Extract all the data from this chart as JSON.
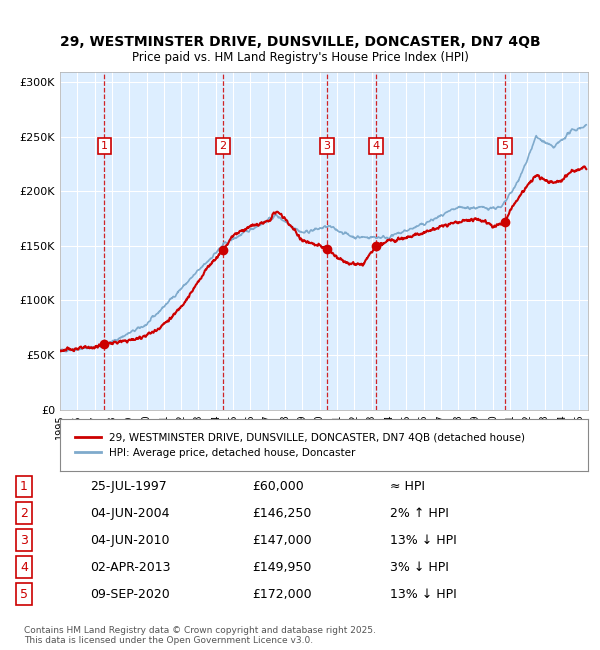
{
  "title_line1": "29, WESTMINSTER DRIVE, DUNSVILLE, DONCASTER, DN7 4QB",
  "title_line2": "Price paid vs. HM Land Registry's House Price Index (HPI)",
  "legend_label_red": "29, WESTMINSTER DRIVE, DUNSVILLE, DONCASTER, DN7 4QB (detached house)",
  "legend_label_blue": "HPI: Average price, detached house, Doncaster",
  "footer": "Contains HM Land Registry data © Crown copyright and database right 2025.\nThis data is licensed under the Open Government Licence v3.0.",
  "transactions": [
    {
      "num": 1,
      "date": "25-JUL-1997",
      "price": 60000,
      "rel": "≈ HPI"
    },
    {
      "num": 2,
      "date": "04-JUN-2004",
      "price": 146250,
      "rel": "2% ↑ HPI"
    },
    {
      "num": 3,
      "date": "04-JUN-2010",
      "price": 147000,
      "rel": "13% ↓ HPI"
    },
    {
      "num": 4,
      "date": "02-APR-2013",
      "price": 149950,
      "rel": "3% ↓ HPI"
    },
    {
      "num": 5,
      "date": "09-SEP-2020",
      "price": 172000,
      "rel": "13% ↓ HPI"
    }
  ],
  "transaction_x": [
    1997.57,
    2004.42,
    2010.42,
    2013.25,
    2020.69
  ],
  "transaction_y": [
    60000,
    146250,
    147000,
    149950,
    172000
  ],
  "ylim": [
    0,
    310000
  ],
  "xlim_start": 1995.0,
  "xlim_end": 2025.5,
  "yticks": [
    0,
    50000,
    100000,
    150000,
    200000,
    250000,
    300000
  ],
  "ytick_labels": [
    "£0",
    "£50K",
    "£100K",
    "£150K",
    "£200K",
    "£250K",
    "£300K"
  ],
  "xticks": [
    1995,
    1996,
    1997,
    1998,
    1999,
    2000,
    2001,
    2002,
    2003,
    2004,
    2005,
    2006,
    2007,
    2008,
    2009,
    2010,
    2011,
    2012,
    2013,
    2014,
    2015,
    2016,
    2017,
    2018,
    2019,
    2020,
    2021,
    2022,
    2023,
    2024,
    2025
  ],
  "red_color": "#cc0000",
  "blue_color": "#7faacc",
  "bg_color": "#ddeeff",
  "plot_bg": "#ddeeff",
  "grid_color": "#ffffff",
  "dashed_color": "#cc0000"
}
